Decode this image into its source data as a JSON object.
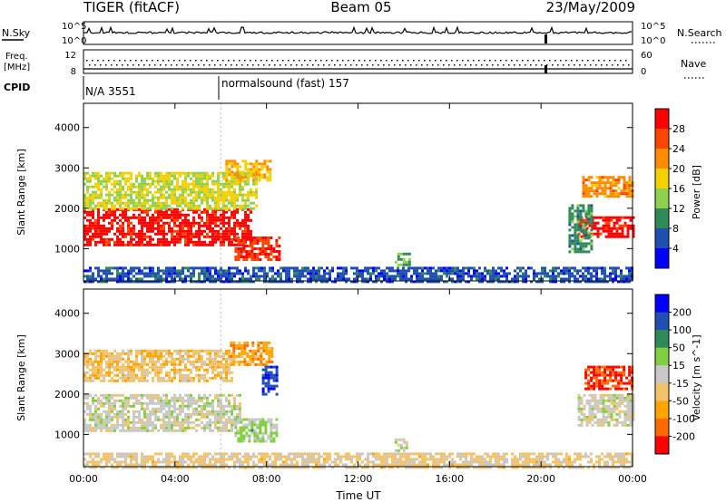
{
  "header": {
    "left_title": "TIGER (fitACF)",
    "center_title": "Beam 05",
    "date": "23/May/2009"
  },
  "status_panels": {
    "nsky_label": "N.Sky",
    "nsky_ticks": [
      "10^5",
      "10^0"
    ],
    "nsearch_label": "N.Search",
    "freq_label_line1": "Freq.",
    "freq_label_line2": "[MHz]",
    "freq_ticks": [
      "12",
      "8"
    ],
    "nave_label": "Nave",
    "nave_ticks": [
      "60",
      "0"
    ],
    "cpid_label": "CPID",
    "cpid_segments": [
      {
        "text": "N/A 3551",
        "start": "00:00"
      },
      {
        "text": "normalsound (fast) 157",
        "start": "06:00"
      }
    ]
  },
  "chart_data": [
    {
      "type": "heatmap",
      "ylabel": "Slant Range [km]",
      "xlabel": "Time UT",
      "x_ticks": [
        "00:00",
        "04:00",
        "08:00",
        "12:00",
        "16:00",
        "20:00",
        "00:00"
      ],
      "x_range_hours": [
        0,
        24
      ],
      "y_ticks": [
        1000,
        2000,
        3000,
        4000
      ],
      "ylim": [
        200,
        4600
      ],
      "colorbar": {
        "label": "Power [dB]",
        "ticks": [
          4,
          8,
          12,
          16,
          20,
          24,
          28
        ],
        "range": [
          0,
          32
        ],
        "colors": [
          "#0000ff",
          "#1f4fb0",
          "#2e8b57",
          "#8fd14f",
          "#f5d000",
          "#ff8c00",
          "#ff4500",
          "#ff0000"
        ]
      },
      "regions": [
        {
          "t0": 0.0,
          "t1": 7.3,
          "r0": 1100,
          "r1": 2000,
          "value": 30
        },
        {
          "t0": 0.0,
          "t1": 7.5,
          "r0": 2000,
          "r1": 2900,
          "value": 16
        },
        {
          "t0": 6.6,
          "t1": 8.6,
          "r0": 700,
          "r1": 1300,
          "value": 28
        },
        {
          "t0": 6.2,
          "t1": 8.2,
          "r0": 2700,
          "r1": 3200,
          "value": 20
        },
        {
          "t0": 0.0,
          "t1": 24.0,
          "r0": 200,
          "r1": 550,
          "value": 6
        },
        {
          "t0": 13.6,
          "t1": 14.2,
          "r0": 600,
          "r1": 900,
          "value": 12
        },
        {
          "t0": 21.6,
          "t1": 24.0,
          "r0": 1300,
          "r1": 1800,
          "value": 30
        },
        {
          "t0": 21.8,
          "t1": 24.0,
          "r0": 2300,
          "r1": 2800,
          "value": 22
        },
        {
          "t0": 21.2,
          "t1": 22.2,
          "r0": 900,
          "r1": 2100,
          "value": 10
        }
      ]
    },
    {
      "type": "heatmap",
      "ylabel": "Slant Range [km]",
      "xlabel": "Time UT",
      "x_ticks": [
        "00:00",
        "04:00",
        "08:00",
        "12:00",
        "16:00",
        "20:00",
        "00:00"
      ],
      "x_range_hours": [
        0,
        24
      ],
      "y_ticks": [
        1000,
        2000,
        3000,
        4000
      ],
      "ylim": [
        200,
        4600
      ],
      "colorbar": {
        "label": "Velocity [m s^-1]",
        "ticks": [
          200,
          100,
          50,
          15,
          -15,
          -50,
          -100,
          -200
        ],
        "range": [
          -250,
          250
        ],
        "colors": [
          "#ff0000",
          "#ff6a00",
          "#ffa500",
          "#f2c36b",
          "#c8c8c8",
          "#7fcf3f",
          "#2e8b57",
          "#1f4fb0",
          "#0000ff"
        ]
      },
      "regions": [
        {
          "t0": 0.0,
          "t1": 6.8,
          "r0": 1100,
          "r1": 2000,
          "value": 0
        },
        {
          "t0": 0.0,
          "t1": 6.5,
          "r0": 2300,
          "r1": 3100,
          "value": -60
        },
        {
          "t0": 6.6,
          "t1": 8.4,
          "r0": 800,
          "r1": 1400,
          "value": 40
        },
        {
          "t0": 6.4,
          "t1": 8.2,
          "r0": 2700,
          "r1": 3300,
          "value": -120
        },
        {
          "t0": 7.8,
          "t1": 8.5,
          "r0": 2000,
          "r1": 2700,
          "value": 180
        },
        {
          "t0": 0.0,
          "t1": 24.0,
          "r0": 200,
          "r1": 550,
          "value": -40
        },
        {
          "t0": 13.6,
          "t1": 14.1,
          "r0": 600,
          "r1": 900,
          "value": 0
        },
        {
          "t0": 21.9,
          "t1": 24.0,
          "r0": 2100,
          "r1": 2700,
          "value": -200
        },
        {
          "t0": 21.6,
          "t1": 24.0,
          "r0": 1200,
          "r1": 2000,
          "value": 0
        }
      ]
    }
  ]
}
